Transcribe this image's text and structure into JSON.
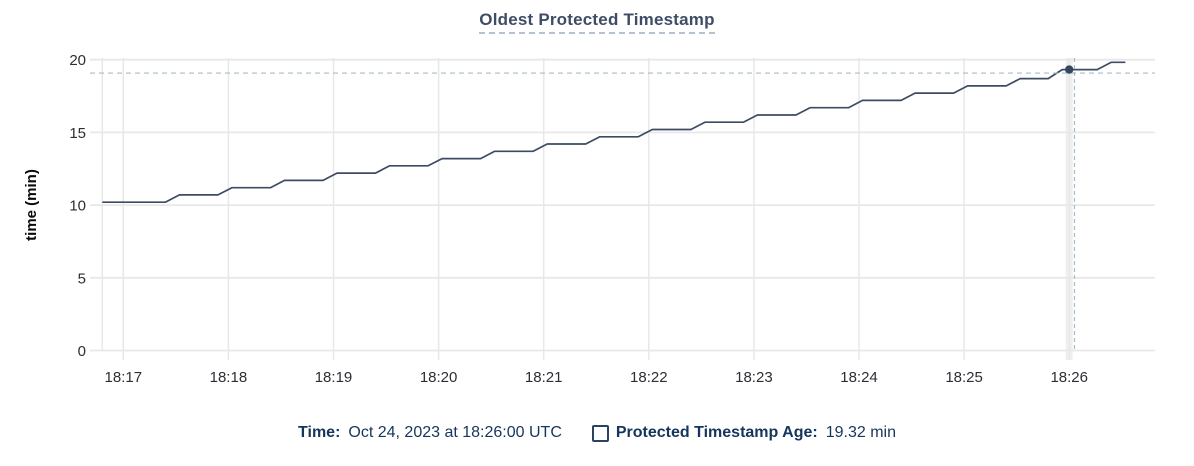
{
  "chart": {
    "title": "Oldest Protected Timestamp"
  },
  "footer": {
    "time_label": "Time:",
    "time_value": "Oct 24, 2023 at 18:26:00 UTC",
    "series_label": "Protected Timestamp Age:",
    "series_value": "19.32 min"
  },
  "colors": {
    "title": "#3f4c66",
    "footer_text": "#16355c",
    "series_line": "#3d4c63",
    "hover_dot": "#36465e",
    "gridline": "#e8e8e8",
    "cursor_band": "#efefef",
    "crosshair": "#a8bccb",
    "tick_label": "#2b2e33",
    "axis_title": "#0a0a0a"
  },
  "chart_data": {
    "type": "line",
    "title": "Oldest Protected Timestamp",
    "xlabel": "",
    "ylabel": "time (min)",
    "ylim": [
      0,
      20
    ],
    "yticks": [
      0,
      5,
      10,
      15,
      20
    ],
    "x_tick_labels": [
      "18:17",
      "18:18",
      "18:19",
      "18:20",
      "18:21",
      "18:22",
      "18:23",
      "18:24",
      "18:25",
      "18:26"
    ],
    "x_unit": "seconds after 18:17:00 UTC",
    "grid": true,
    "legend_position": "bottom",
    "series": [
      {
        "name": "Protected Timestamp Age",
        "color": "#3d4c63",
        "points": [
          [
            -12,
            10.2
          ],
          [
            24,
            10.2
          ],
          [
            32,
            10.7
          ],
          [
            54,
            10.7
          ],
          [
            62,
            11.2
          ],
          [
            84,
            11.2
          ],
          [
            92,
            11.7
          ],
          [
            114,
            11.7
          ],
          [
            122,
            12.2
          ],
          [
            144,
            12.2
          ],
          [
            152,
            12.7
          ],
          [
            174,
            12.7
          ],
          [
            182,
            13.2
          ],
          [
            204,
            13.2
          ],
          [
            212,
            13.7
          ],
          [
            234,
            13.7
          ],
          [
            242,
            14.2
          ],
          [
            264,
            14.2
          ],
          [
            272,
            14.7
          ],
          [
            294,
            14.7
          ],
          [
            302,
            15.2
          ],
          [
            324,
            15.2
          ],
          [
            332,
            15.7
          ],
          [
            354,
            15.7
          ],
          [
            362,
            16.2
          ],
          [
            384,
            16.2
          ],
          [
            392,
            16.7
          ],
          [
            414,
            16.7
          ],
          [
            422,
            17.2
          ],
          [
            444,
            17.2
          ],
          [
            452,
            17.7
          ],
          [
            474,
            17.7
          ],
          [
            482,
            18.2
          ],
          [
            504,
            18.2
          ],
          [
            512,
            18.7
          ],
          [
            528,
            18.7
          ],
          [
            536,
            19.32
          ],
          [
            556,
            19.32
          ],
          [
            564,
            19.82
          ],
          [
            572,
            19.82
          ]
        ]
      }
    ],
    "hover": {
      "time_label": "Oct 24, 2023 at 18:26:00 UTC",
      "x_tick": "18:26",
      "x_sec": 540,
      "value": 19.32,
      "value_label": "19.32 min",
      "cursor_x_sec": 543,
      "cursor_y_value": 19.08
    }
  }
}
